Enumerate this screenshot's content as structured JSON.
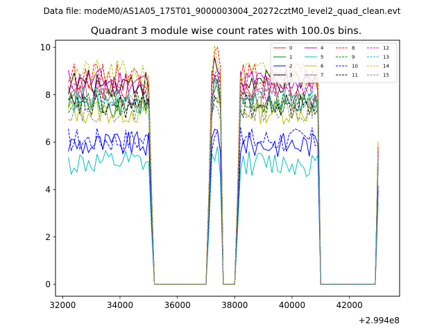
{
  "figure": {
    "suptitle": "Data file: modeM0/AS1A05_175T01_9000003004_20272cztM0_level2_quad_clean.evt"
  },
  "chart_data": {
    "type": "line",
    "title": "Quadrant 3 module wise count rates with 100.0s bins.",
    "xlabel": "",
    "ylabel": "",
    "x_offset_label": "+2.994e8",
    "xlim": [
      31750,
      43750
    ],
    "ylim": [
      -0.5,
      10.3
    ],
    "xticks": [
      32000,
      34000,
      36000,
      38000,
      40000,
      42000
    ],
    "xtick_labels": [
      "32000",
      "34000",
      "36000",
      "38000",
      "40000",
      "42000"
    ],
    "yticks": [
      0,
      2,
      4,
      6,
      8,
      10
    ],
    "ytick_labels": [
      "0",
      "2",
      "4",
      "6",
      "8",
      "10"
    ],
    "legend_position": "upper right",
    "bin_seconds": 100.0,
    "x_start": 32200,
    "n_bins": 109,
    "segments": [
      {
        "start": 32200,
        "end": 35000,
        "state": "on"
      },
      {
        "start": 35100,
        "end": 35100,
        "state": "transition"
      },
      {
        "start": 35200,
        "end": 37000,
        "state": "off"
      },
      {
        "start": 37100,
        "end": 37100,
        "state": "transition"
      },
      {
        "start": 37200,
        "end": 37500,
        "state": "on"
      },
      {
        "start": 37600,
        "end": 38000,
        "state": "off"
      },
      {
        "start": 38100,
        "end": 38100,
        "state": "transition"
      },
      {
        "start": 38200,
        "end": 40900,
        "state": "on"
      },
      {
        "start": 41000,
        "end": 42900,
        "state": "off"
      },
      {
        "start": 43000,
        "end": 43000,
        "state": "rise"
      }
    ],
    "series": [
      {
        "name": "0",
        "color": "#d62728",
        "dash": "solid",
        "level": 8.3
      },
      {
        "name": "1",
        "color": "#008000",
        "dash": "solid",
        "level": 7.6
      },
      {
        "name": "2",
        "color": "#0000ff",
        "dash": "solid",
        "level": 5.9
      },
      {
        "name": "3",
        "color": "#000000",
        "dash": "solid",
        "level": 8.5
      },
      {
        "name": "4",
        "color": "#bf00bf",
        "dash": "solid",
        "level": 8.6
      },
      {
        "name": "5",
        "color": "#00bfbf",
        "dash": "solid",
        "level": 5.1
      },
      {
        "name": "6",
        "color": "#bfbf00",
        "dash": "solid",
        "level": 7.3
      },
      {
        "name": "7",
        "color": "#808080",
        "dash": "solid",
        "level": 7.9
      },
      {
        "name": "8",
        "color": "#ff0000",
        "dash": "dashed",
        "level": 8.8
      },
      {
        "name": "9",
        "color": "#008000",
        "dash": "dashed",
        "level": 7.7
      },
      {
        "name": "10",
        "color": "#0000ff",
        "dash": "dashed",
        "level": 6.1
      },
      {
        "name": "11",
        "color": "#000000",
        "dash": "dashed",
        "level": 7.5
      },
      {
        "name": "12",
        "color": "#bf00bf",
        "dash": "dashed",
        "level": 8.1
      },
      {
        "name": "13",
        "color": "#00bfbf",
        "dash": "dashed",
        "level": 7.8
      },
      {
        "name": "14",
        "color": "#bfbf00",
        "dash": "dashed",
        "level": 8.9
      },
      {
        "name": "15",
        "color": "#808080",
        "dash": "dashed",
        "level": 7.4
      }
    ]
  }
}
